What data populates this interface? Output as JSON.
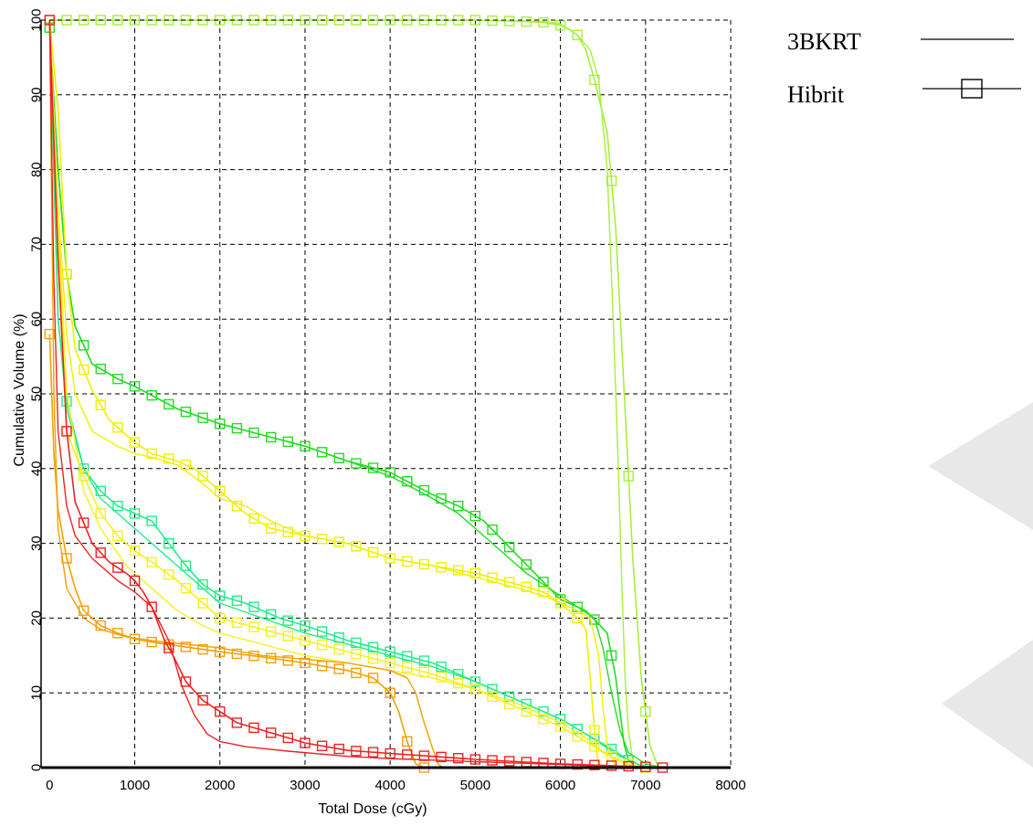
{
  "chart_data": {
    "type": "line",
    "title": "",
    "xlabel": "Total Dose (cGy)",
    "ylabel": "Cumulative Volume (%)",
    "xlim": [
      -100,
      8000
    ],
    "ylim": [
      0,
      100
    ],
    "xticks": [
      0,
      1000,
      2000,
      3000,
      4000,
      5000,
      6000,
      7000,
      8000
    ],
    "yticks": [
      0,
      10,
      20,
      30,
      40,
      50,
      60,
      70,
      80,
      90,
      100
    ],
    "xtick_labels": [
      "0",
      "1000",
      "2000",
      "3000",
      "4000",
      "5000",
      "6000",
      "7000",
      "8000"
    ],
    "ytick_labels": [
      "0",
      "10",
      "20",
      "30",
      "40",
      "50",
      "60",
      "70",
      "80",
      "90",
      "100"
    ],
    "grid": true,
    "legend_position": "top-right",
    "legend": [
      {
        "label": "3BKRT",
        "style": "line"
      },
      {
        "label": "Hibrit",
        "style": "line-with-square-markers"
      }
    ],
    "series": [
      {
        "plan": "3BKRT",
        "color": "#a6f03a",
        "x": [
          0,
          5000,
          5800,
          6000,
          6200,
          6350,
          6450,
          6550,
          6620,
          6680,
          6720,
          6760,
          6800,
          6850,
          6950
        ],
        "y": [
          100,
          100,
          99.8,
          99.5,
          98,
          96,
          92,
          80,
          60,
          40,
          25,
          12,
          5,
          1,
          0
        ]
      },
      {
        "plan": "Hibrit",
        "color": "#a6f03a",
        "x": [
          0,
          5000,
          5600,
          5800,
          6000,
          6100,
          6200,
          6300,
          6400,
          6550,
          6650,
          6750,
          6850,
          6950,
          7050,
          7150
        ],
        "y": [
          100,
          100,
          99.8,
          99.7,
          99.3,
          98.8,
          98,
          96,
          92,
          85,
          72,
          50,
          28,
          12,
          3,
          0
        ]
      },
      {
        "plan": "3BKRT",
        "color": "#22dd22",
        "x": [
          0,
          100,
          200,
          300,
          500,
          800,
          1000,
          1500,
          2000,
          2500,
          3000,
          3500,
          4000,
          4500,
          4800,
          5200,
          5600,
          6000,
          6400,
          6500,
          6600,
          6700,
          6800,
          7000,
          7200,
          7300
        ],
        "y": [
          99,
          80,
          66,
          59,
          54,
          52,
          51,
          48,
          46,
          44.5,
          43,
          41,
          39,
          36,
          34,
          30,
          26,
          23,
          20,
          16,
          10,
          5,
          2,
          0.5,
          0,
          0
        ]
      },
      {
        "plan": "Hibrit",
        "color": "#22dd22",
        "x": [
          0,
          100,
          200,
          300,
          500,
          800,
          1000,
          1500,
          2000,
          2500,
          3000,
          3500,
          4000,
          4500,
          4800,
          5100,
          5400,
          5700,
          6000,
          6300,
          6550,
          6650,
          6700,
          6750,
          6800,
          6900
        ],
        "y": [
          99,
          80,
          66,
          59,
          54,
          52,
          51,
          48,
          46,
          44.5,
          43,
          41,
          39.5,
          36.5,
          35,
          33,
          29.5,
          26,
          22.5,
          21,
          18,
          12,
          7.5,
          3,
          1,
          0
        ]
      },
      {
        "plan": "3BKRT",
        "color": "#22ee88",
        "x": [
          0,
          100,
          200,
          400,
          600,
          900,
          1200,
          1500,
          2000,
          2500,
          3000,
          3500,
          4000,
          4500,
          5000,
          5500,
          6000,
          6300,
          6500,
          6700,
          6900,
          7100
        ],
        "y": [
          100,
          60,
          48,
          40,
          36,
          33,
          30,
          27,
          22,
          20,
          18,
          16.5,
          15,
          13.5,
          11.5,
          9,
          6.5,
          4.5,
          3,
          1.5,
          0.5,
          0
        ]
      },
      {
        "plan": "Hibrit",
        "color": "#22ee88",
        "x": [
          0,
          100,
          200,
          400,
          600,
          800,
          1000,
          1200,
          1400,
          1600,
          1800,
          2000,
          2300,
          2700,
          3000,
          3500,
          4000,
          4500,
          5000,
          5500,
          6000,
          6300,
          6600,
          6800,
          7000
        ],
        "y": [
          100,
          60,
          49,
          40,
          37,
          35,
          34,
          33,
          30,
          27,
          24.5,
          23,
          22,
          20,
          19,
          17,
          15.5,
          14,
          11.5,
          9,
          6.5,
          4.5,
          2.5,
          1,
          0
        ]
      },
      {
        "plan": "3BKRT",
        "color": "#f0f000",
        "x": [
          0,
          100,
          200,
          300,
          500,
          800,
          1000,
          1200,
          1500,
          1800,
          2000,
          2300,
          2600,
          3000,
          3500,
          4000,
          4500,
          5000,
          5500,
          5800,
          6000,
          6200,
          6350,
          6450,
          6500,
          6550,
          6650
        ],
        "y": [
          100,
          75,
          58,
          50,
          45,
          43,
          42,
          41.5,
          40.5,
          38,
          36,
          35,
          33,
          31,
          30,
          28,
          27,
          25.5,
          24,
          23,
          22,
          21,
          20,
          15,
          8,
          3,
          0
        ]
      },
      {
        "plan": "Hibrit",
        "color": "#f0f000",
        "x": [
          0,
          100,
          200,
          300,
          500,
          700,
          1000,
          1200,
          1500,
          1700,
          2000,
          2300,
          2600,
          3000,
          3500,
          4000,
          4500,
          5000,
          5500,
          5800,
          6000,
          6200,
          6300,
          6350,
          6400,
          6450
        ],
        "y": [
          100,
          88,
          66,
          56,
          50.5,
          46.5,
          43.5,
          42,
          41,
          40,
          37,
          34,
          32,
          31,
          30,
          28,
          27,
          26,
          24.5,
          23.5,
          22,
          20,
          18.5,
          12,
          5,
          0
        ]
      },
      {
        "plan": "3BKRT",
        "color": "#f6f020",
        "x": [
          0,
          200,
          400,
          600,
          900,
          1200,
          1500,
          1800,
          2000,
          2500,
          3000,
          3500,
          4000,
          4500,
          5000,
          5500,
          6000,
          6300,
          6500,
          6700,
          6800,
          6900
        ],
        "y": [
          100,
          50,
          37,
          32,
          27,
          24,
          21,
          19,
          18,
          16.5,
          15,
          14,
          13,
          12,
          10.5,
          8.5,
          6,
          4,
          2,
          0.8,
          0.3,
          0
        ]
      },
      {
        "plan": "Hibrit",
        "color": "#f6f020",
        "x": [
          0,
          200,
          400,
          600,
          800,
          1000,
          1200,
          1500,
          1800,
          2000,
          2500,
          3000,
          3500,
          4000,
          4500,
          5000,
          5500,
          6000,
          6300,
          6600,
          6800,
          7000
        ],
        "y": [
          100,
          45,
          39,
          34,
          31,
          29,
          27.5,
          25,
          22,
          20,
          18.5,
          17,
          15.5,
          14,
          12.5,
          10.5,
          8,
          5.5,
          3.5,
          1.5,
          0.5,
          0
        ]
      },
      {
        "plan": "3BKRT",
        "color": "#f5a000",
        "x": [
          0,
          50,
          100,
          200,
          400,
          600,
          900,
          1200,
          1600,
          2000,
          2500,
          3000,
          3500,
          4000,
          4200,
          4300,
          4400,
          4500,
          4560,
          4620
        ],
        "y": [
          100,
          50,
          32,
          24,
          20,
          18.5,
          17.5,
          17,
          16.5,
          16,
          15,
          14.5,
          14,
          13,
          12,
          10,
          6,
          2.5,
          0.5,
          0
        ]
      },
      {
        "plan": "Hibrit",
        "color": "#f5a000",
        "x": [
          0,
          50,
          100,
          200,
          300,
          400,
          600,
          800,
          1000,
          1200,
          1500,
          2000,
          2500,
          3000,
          3500,
          3800,
          4000,
          4100,
          4200,
          4300,
          4400
        ],
        "y": [
          58,
          42,
          34.5,
          28,
          24,
          21,
          19,
          18,
          17.2,
          16.8,
          16.3,
          15.5,
          14.8,
          14,
          13,
          12,
          10,
          7.5,
          3.5,
          0.5,
          0
        ]
      },
      {
        "plan": "3BKRT",
        "color": "#ee2222",
        "x": [
          0,
          50,
          100,
          200,
          300,
          500,
          800,
          1000,
          1200,
          1400,
          1550,
          1700,
          1850,
          2000,
          2300,
          2800,
          3500,
          4000,
          4500,
          5000,
          5500,
          6000,
          6500,
          7000,
          7200
        ],
        "y": [
          100,
          65,
          45,
          35,
          31,
          28,
          25,
          23.5,
          21.5,
          17,
          11,
          7,
          4.5,
          3.5,
          2.8,
          2.2,
          1.5,
          1.2,
          1,
          0.8,
          0.6,
          0.4,
          0.2,
          0.1,
          0
        ]
      },
      {
        "plan": "Hibrit",
        "color": "#ee2222",
        "x": [
          0,
          100,
          200,
          300,
          500,
          700,
          900,
          1000,
          1100,
          1200,
          1350,
          1450,
          1600,
          1800,
          2000,
          2200,
          2500,
          3000,
          3500,
          4000,
          4500,
          5000,
          5500,
          6000,
          6500,
          7000,
          7200
        ],
        "y": [
          100,
          68,
          45,
          35.5,
          30,
          27.5,
          26,
          25,
          23.5,
          21.5,
          17,
          15,
          11.5,
          9,
          7.5,
          6,
          5,
          3.3,
          2.3,
          1.9,
          1.5,
          1.1,
          0.8,
          0.5,
          0.3,
          0.1,
          0
        ]
      }
    ]
  },
  "legend_colors": {
    "line": "#000000",
    "marker": "#000000"
  },
  "watermark_color": "#e8e8e8"
}
